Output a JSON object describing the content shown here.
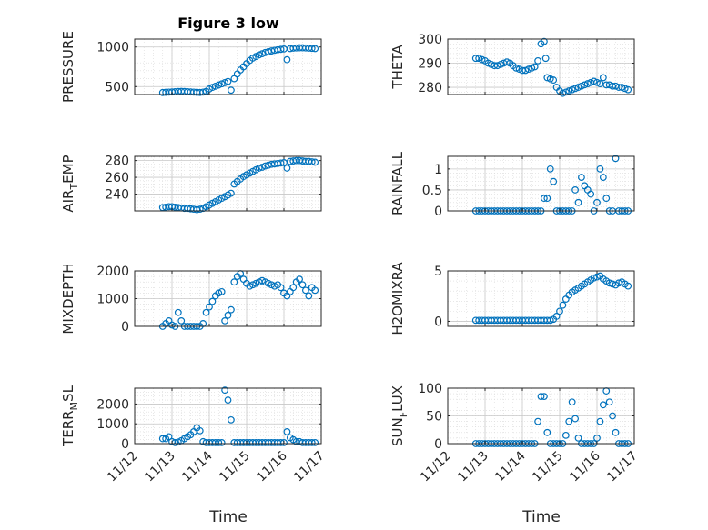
{
  "chart_data": {
    "type": "scatter",
    "title": "Figure 3 low",
    "marker_color": "#0072bd",
    "x_ticks": [
      "11/12",
      "11/13",
      "11/14",
      "11/15",
      "11/16",
      "11/17"
    ],
    "xlabel": "Time",
    "xlim": [
      "11/12",
      "11/17"
    ],
    "grid": true,
    "panels": [
      {
        "ylabel_main": "PRESSURE",
        "ylabel_sub": "",
        "ylim": [
          400,
          1100
        ],
        "yticks": [
          500,
          1000
        ],
        "x": [
          "11/12 18:00",
          "11/12 20:00",
          "11/12 22:00",
          "11/13 00:00",
          "11/13 02:00",
          "11/13 04:00",
          "11/13 06:00",
          "11/13 08:00",
          "11/13 10:00",
          "11/13 12:00",
          "11/13 14:00",
          "11/13 16:00",
          "11/13 18:00",
          "11/13 20:00",
          "11/13 22:00",
          "11/14 00:00",
          "11/14 02:00",
          "11/14 04:00",
          "11/14 06:00",
          "11/14 08:00",
          "11/14 10:00",
          "11/14 12:00",
          "11/14 14:00",
          "11/14 16:00",
          "11/14 18:00",
          "11/14 20:00",
          "11/14 22:00",
          "11/15 00:00",
          "11/15 02:00",
          "11/15 04:00",
          "11/15 06:00",
          "11/15 08:00",
          "11/15 10:00",
          "11/15 12:00",
          "11/15 14:00",
          "11/15 16:00",
          "11/15 18:00",
          "11/15 20:00",
          "11/15 22:00",
          "11/16 00:00",
          "11/16 02:00",
          "11/16 04:00",
          "11/16 06:00",
          "11/16 08:00",
          "11/16 10:00",
          "11/16 12:00",
          "11/16 14:00",
          "11/16 16:00",
          "11/16 18:00",
          "11/16 20:00"
        ],
        "y": [
          425,
          428,
          430,
          432,
          435,
          438,
          440,
          438,
          435,
          432,
          430,
          428,
          426,
          430,
          440,
          470,
          490,
          505,
          520,
          535,
          550,
          565,
          455,
          600,
          660,
          710,
          750,
          790,
          830,
          860,
          880,
          900,
          915,
          930,
          940,
          950,
          958,
          965,
          970,
          975,
          840,
          980,
          985,
          988,
          990,
          990,
          988,
          985,
          982,
          980
        ]
      },
      {
        "ylabel_main": "THETA",
        "ylabel_sub": "",
        "ylim": [
          277,
          300
        ],
        "yticks": [
          280,
          290,
          300
        ],
        "x": [
          "11/12 18:00",
          "11/12 20:00",
          "11/12 22:00",
          "11/13 00:00",
          "11/13 02:00",
          "11/13 04:00",
          "11/13 06:00",
          "11/13 08:00",
          "11/13 10:00",
          "11/13 12:00",
          "11/13 14:00",
          "11/13 16:00",
          "11/13 18:00",
          "11/13 20:00",
          "11/13 22:00",
          "11/14 00:00",
          "11/14 02:00",
          "11/14 04:00",
          "11/14 06:00",
          "11/14 08:00",
          "11/14 10:00",
          "11/14 12:00",
          "11/14 14:00",
          "11/14 15:00",
          "11/14 16:00",
          "11/14 18:00",
          "11/14 20:00",
          "11/14 22:00",
          "11/15 00:00",
          "11/15 02:00",
          "11/15 04:00",
          "11/15 06:00",
          "11/15 08:00",
          "11/15 10:00",
          "11/15 12:00",
          "11/15 14:00",
          "11/15 16:00",
          "11/15 18:00",
          "11/15 20:00",
          "11/15 22:00",
          "11/16 00:00",
          "11/16 02:00",
          "11/16 04:00",
          "11/16 06:00",
          "11/16 08:00",
          "11/16 10:00",
          "11/16 12:00",
          "11/16 14:00",
          "11/16 16:00",
          "11/16 18:00",
          "11/16 20:00"
        ],
        "y": [
          292,
          292,
          291.5,
          291,
          290,
          289.5,
          289,
          289,
          289.5,
          290,
          290.5,
          290,
          289,
          288,
          287.5,
          287,
          287,
          287.5,
          288,
          288.5,
          291,
          298,
          299,
          292,
          284,
          283.5,
          283,
          280,
          278.5,
          277.5,
          278,
          278.5,
          279,
          279.5,
          280,
          280.5,
          281,
          281.5,
          282,
          282.5,
          282,
          281.5,
          284,
          281,
          281,
          280.5,
          280.5,
          280,
          280,
          279.5,
          279
        ]
      },
      {
        "ylabel_main": "AIR",
        "ylabel_sub": "T",
        "ylabel_tail": "EMP",
        "ylim": [
          220,
          285
        ],
        "yticks": [
          240,
          260,
          280
        ],
        "x": [
          "11/12 18:00",
          "11/12 20:00",
          "11/12 22:00",
          "11/13 00:00",
          "11/13 02:00",
          "11/13 04:00",
          "11/13 06:00",
          "11/13 08:00",
          "11/13 10:00",
          "11/13 12:00",
          "11/13 14:00",
          "11/13 16:00",
          "11/13 18:00",
          "11/13 20:00",
          "11/13 22:00",
          "11/14 00:00",
          "11/14 02:00",
          "11/14 04:00",
          "11/14 06:00",
          "11/14 08:00",
          "11/14 10:00",
          "11/14 12:00",
          "11/14 14:00",
          "11/14 16:00",
          "11/14 18:00",
          "11/14 20:00",
          "11/14 22:00",
          "11/15 00:00",
          "11/15 02:00",
          "11/15 04:00",
          "11/15 06:00",
          "11/15 08:00",
          "11/15 10:00",
          "11/15 12:00",
          "11/15 14:00",
          "11/15 16:00",
          "11/15 18:00",
          "11/15 20:00",
          "11/15 22:00",
          "11/16 00:00",
          "11/16 02:00",
          "11/16 04:00",
          "11/16 06:00",
          "11/16 08:00",
          "11/16 10:00",
          "11/16 12:00",
          "11/16 14:00",
          "11/16 16:00",
          "11/16 18:00",
          "11/16 20:00"
        ],
        "y": [
          224,
          224.5,
          225,
          225,
          224.5,
          224,
          223.5,
          223,
          223,
          222.5,
          222,
          221.5,
          222,
          223,
          225,
          227,
          229,
          231,
          233,
          235,
          237,
          239,
          241,
          252,
          255,
          258,
          261,
          263,
          265,
          267,
          269,
          271,
          272,
          273.5,
          274.5,
          275.5,
          276,
          276.5,
          277,
          277.5,
          271,
          279,
          279.5,
          280,
          280,
          279.5,
          279,
          279,
          278.5,
          278
        ]
      },
      {
        "ylabel_main": "RAINFALL",
        "ylabel_sub": "",
        "ylim": [
          0,
          1.3
        ],
        "yticks": [
          0,
          0.5,
          1
        ],
        "x": [
          "11/12 18:00",
          "11/12 20:00",
          "11/12 22:00",
          "11/13 00:00",
          "11/13 02:00",
          "11/13 04:00",
          "11/13 06:00",
          "11/13 08:00",
          "11/13 10:00",
          "11/13 12:00",
          "11/13 14:00",
          "11/13 16:00",
          "11/13 18:00",
          "11/13 20:00",
          "11/13 22:00",
          "11/14 00:00",
          "11/14 02:00",
          "11/14 04:00",
          "11/14 06:00",
          "11/14 08:00",
          "11/14 10:00",
          "11/14 12:00",
          "11/14 14:00",
          "11/14 16:00",
          "11/14 18:00",
          "11/14 20:00",
          "11/14 22:00",
          "11/15 00:00",
          "11/15 02:00",
          "11/15 04:00",
          "11/15 06:00",
          "11/15 08:00",
          "11/15 10:00",
          "11/15 12:00",
          "11/15 14:00",
          "11/15 16:00",
          "11/15 18:00",
          "11/15 20:00",
          "11/15 22:00",
          "11/16 00:00",
          "11/16 02:00",
          "11/16 04:00",
          "11/16 06:00",
          "11/16 08:00",
          "11/16 10:00",
          "11/16 12:00",
          "11/16 14:00",
          "11/16 16:00",
          "11/16 18:00",
          "11/16 20:00"
        ],
        "y": [
          0,
          0,
          0,
          0,
          0,
          0,
          0,
          0,
          0,
          0,
          0,
          0,
          0,
          0,
          0,
          0,
          0,
          0,
          0,
          0,
          0,
          0,
          0.3,
          0.3,
          1.0,
          0.7,
          0,
          0,
          0,
          0,
          0,
          0,
          0.5,
          0.2,
          0.8,
          0.6,
          0.5,
          0.4,
          0,
          0.2,
          1.0,
          0.8,
          0.3,
          0,
          0,
          1.25,
          0,
          0,
          0,
          0
        ]
      },
      {
        "ylabel_main": "MIXDEPTH",
        "ylabel_sub": "",
        "ylim": [
          0,
          2000
        ],
        "yticks": [
          0,
          1000,
          2000
        ],
        "x": [
          "11/12 18:00",
          "11/12 20:00",
          "11/12 22:00",
          "11/13 00:00",
          "11/13 02:00",
          "11/13 04:00",
          "11/13 06:00",
          "11/13 08:00",
          "11/13 10:00",
          "11/13 12:00",
          "11/13 14:00",
          "11/13 16:00",
          "11/13 18:00",
          "11/13 20:00",
          "11/13 22:00",
          "11/14 00:00",
          "11/14 02:00",
          "11/14 04:00",
          "11/14 06:00",
          "11/14 08:00",
          "11/14 10:00",
          "11/14 12:00",
          "11/14 14:00",
          "11/14 16:00",
          "11/14 18:00",
          "11/14 20:00",
          "11/14 22:00",
          "11/15 00:00",
          "11/15 02:00",
          "11/15 04:00",
          "11/15 06:00",
          "11/15 08:00",
          "11/15 10:00",
          "11/15 12:00",
          "11/15 14:00",
          "11/15 16:00",
          "11/15 18:00",
          "11/15 20:00",
          "11/15 22:00",
          "11/16 00:00",
          "11/16 02:00",
          "11/16 04:00",
          "11/16 06:00",
          "11/16 08:00",
          "11/16 10:00",
          "11/16 12:00",
          "11/16 14:00",
          "11/16 16:00",
          "11/16 18:00",
          "11/16 20:00"
        ],
        "y": [
          0,
          100,
          200,
          50,
          0,
          500,
          200,
          0,
          0,
          0,
          0,
          0,
          0,
          100,
          500,
          700,
          900,
          1100,
          1200,
          1250,
          200,
          400,
          600,
          1600,
          1800,
          1900,
          1700,
          1550,
          1450,
          1500,
          1550,
          1600,
          1650,
          1600,
          1550,
          1500,
          1450,
          1500,
          1400,
          1200,
          1100,
          1250,
          1400,
          1600,
          1700,
          1500,
          1300,
          1100,
          1400,
          1300
        ]
      },
      {
        "ylabel_main": "H2OMIXRA",
        "ylabel_sub": "",
        "ylim": [
          -0.5,
          5
        ],
        "yticks": [
          0,
          5
        ],
        "x": [
          "11/12 18:00",
          "11/12 20:00",
          "11/12 22:00",
          "11/13 00:00",
          "11/13 02:00",
          "11/13 04:00",
          "11/13 06:00",
          "11/13 08:00",
          "11/13 10:00",
          "11/13 12:00",
          "11/13 14:00",
          "11/13 16:00",
          "11/13 18:00",
          "11/13 20:00",
          "11/13 22:00",
          "11/14 00:00",
          "11/14 02:00",
          "11/14 04:00",
          "11/14 06:00",
          "11/14 08:00",
          "11/14 10:00",
          "11/14 12:00",
          "11/14 14:00",
          "11/14 16:00",
          "11/14 18:00",
          "11/14 20:00",
          "11/14 22:00",
          "11/15 00:00",
          "11/15 02:00",
          "11/15 04:00",
          "11/15 06:00",
          "11/15 08:00",
          "11/15 10:00",
          "11/15 12:00",
          "11/15 14:00",
          "11/15 16:00",
          "11/15 18:00",
          "11/15 20:00",
          "11/15 22:00",
          "11/16 00:00",
          "11/16 02:00",
          "11/16 04:00",
          "11/16 06:00",
          "11/16 08:00",
          "11/16 10:00",
          "11/16 12:00",
          "11/16 14:00",
          "11/16 16:00",
          "11/16 18:00",
          "11/16 20:00"
        ],
        "y": [
          0.1,
          0.1,
          0.1,
          0.1,
          0.1,
          0.1,
          0.1,
          0.1,
          0.1,
          0.1,
          0.1,
          0.1,
          0.1,
          0.1,
          0.1,
          0.1,
          0.1,
          0.1,
          0.1,
          0.1,
          0.1,
          0.1,
          0.1,
          0.1,
          0.1,
          0.2,
          0.5,
          1.0,
          1.6,
          2.2,
          2.6,
          2.9,
          3.1,
          3.3,
          3.5,
          3.7,
          3.9,
          4.1,
          4.3,
          4.4,
          4.5,
          4.2,
          4.0,
          3.8,
          3.7,
          3.6,
          3.8,
          3.9,
          3.7,
          3.5
        ]
      },
      {
        "ylabel_main": "TERR",
        "ylabel_sub": "M",
        "ylabel_tail": "SL",
        "ylim": [
          0,
          2800
        ],
        "yticks": [
          0,
          1000,
          2000
        ],
        "x": [
          "11/12 18:00",
          "11/12 20:00",
          "11/12 22:00",
          "11/13 00:00",
          "11/13 02:00",
          "11/13 04:00",
          "11/13 06:00",
          "11/13 08:00",
          "11/13 10:00",
          "11/13 12:00",
          "11/13 14:00",
          "11/13 16:00",
          "11/13 18:00",
          "11/13 20:00",
          "11/13 22:00",
          "11/14 00:00",
          "11/14 02:00",
          "11/14 04:00",
          "11/14 06:00",
          "11/14 08:00",
          "11/14 10:00",
          "11/14 12:00",
          "11/14 14:00",
          "11/14 16:00",
          "11/14 18:00",
          "11/14 20:00",
          "11/14 22:00",
          "11/15 00:00",
          "11/15 02:00",
          "11/15 04:00",
          "11/15 06:00",
          "11/15 08:00",
          "11/15 10:00",
          "11/15 12:00",
          "11/15 14:00",
          "11/15 16:00",
          "11/15 18:00",
          "11/15 20:00",
          "11/15 22:00",
          "11/16 00:00",
          "11/16 02:00",
          "11/16 04:00",
          "11/16 06:00",
          "11/16 08:00",
          "11/16 10:00",
          "11/16 12:00",
          "11/16 14:00",
          "11/16 16:00",
          "11/16 18:00",
          "11/16 20:00"
        ],
        "y": [
          250,
          250,
          350,
          100,
          50,
          80,
          150,
          250,
          350,
          450,
          600,
          800,
          650,
          100,
          50,
          50,
          50,
          50,
          50,
          50,
          2700,
          2200,
          1200,
          50,
          50,
          50,
          50,
          50,
          50,
          50,
          50,
          50,
          50,
          50,
          50,
          50,
          50,
          50,
          50,
          50,
          600,
          300,
          200,
          100,
          100,
          50,
          50,
          50,
          50,
          50
        ]
      },
      {
        "ylabel_main": "SUN",
        "ylabel_sub": "F",
        "ylabel_tail": "LUX",
        "ylim": [
          0,
          100
        ],
        "yticks": [
          0,
          50,
          100
        ],
        "x": [
          "11/12 18:00",
          "11/12 20:00",
          "11/12 22:00",
          "11/13 00:00",
          "11/13 02:00",
          "11/13 04:00",
          "11/13 06:00",
          "11/13 08:00",
          "11/13 10:00",
          "11/13 12:00",
          "11/13 14:00",
          "11/13 16:00",
          "11/13 18:00",
          "11/13 20:00",
          "11/13 22:00",
          "11/14 00:00",
          "11/14 02:00",
          "11/14 04:00",
          "11/14 06:00",
          "11/14 08:00",
          "11/14 10:00",
          "11/14 12:00",
          "11/14 14:00",
          "11/14 16:00",
          "11/14 18:00",
          "11/14 20:00",
          "11/14 22:00",
          "11/15 00:00",
          "11/15 02:00",
          "11/15 04:00",
          "11/15 06:00",
          "11/15 08:00",
          "11/15 10:00",
          "11/15 12:00",
          "11/15 14:00",
          "11/15 16:00",
          "11/15 18:00",
          "11/15 20:00",
          "11/15 22:00",
          "11/16 00:00",
          "11/16 02:00",
          "11/16 04:00",
          "11/16 06:00",
          "11/16 08:00",
          "11/16 10:00",
          "11/16 12:00",
          "11/16 14:00",
          "11/16 16:00",
          "11/16 18:00",
          "11/16 20:00"
        ],
        "y": [
          0,
          0,
          0,
          0,
          0,
          0,
          0,
          0,
          0,
          0,
          0,
          0,
          0,
          0,
          0,
          0,
          0,
          0,
          0,
          0,
          40,
          85,
          85,
          20,
          0,
          0,
          0,
          0,
          0,
          15,
          40,
          75,
          45,
          10,
          0,
          0,
          0,
          0,
          0,
          10,
          40,
          70,
          95,
          75,
          50,
          20,
          0,
          0,
          0,
          0
        ]
      }
    ]
  }
}
